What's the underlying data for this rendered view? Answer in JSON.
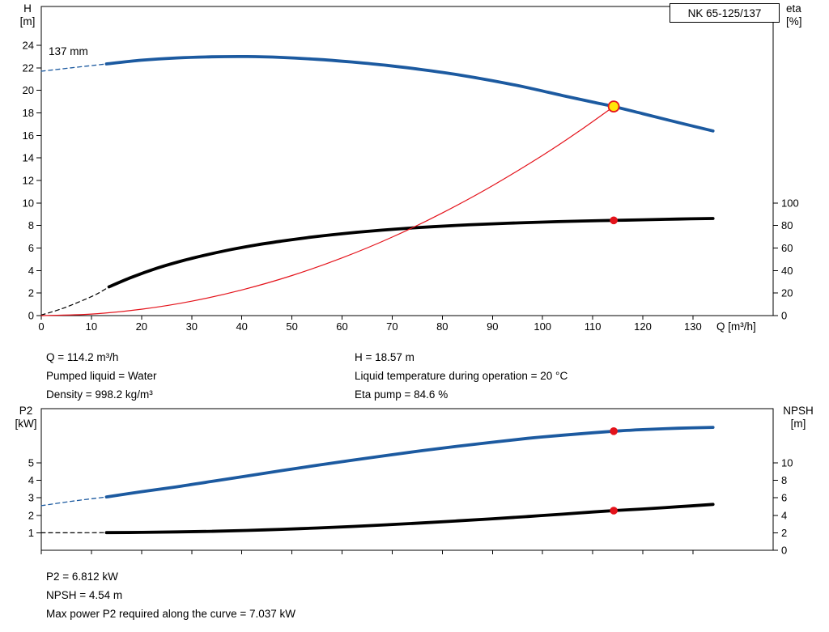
{
  "top_info": {
    "left": [
      "Q = 114.2 m³/h",
      "Pumped liquid = Water",
      "Density = 998.2 kg/m³"
    ],
    "right": [
      "H = 18.57 m",
      "Liquid temperature during operation = 20 °C",
      "Eta pump = 84.6 %"
    ]
  },
  "bottom_info": [
    "P2 = 6.812 kW",
    "NPSH = 4.54 m",
    "Max power P2 required along the curve = 7.037 kW"
  ],
  "colors": {
    "curve_blue": "#1c5aa0",
    "curve_black": "#000000",
    "curve_red": "#e4131b",
    "duty_yellow": "#ffe50a",
    "frame": "#000000"
  },
  "chart_data": [
    {
      "type": "line",
      "title": "NK 65-125/137",
      "annotation": {
        "text": "137 mm"
      },
      "duty_point": {
        "q": 114.2,
        "h": 18.57,
        "eta": 84.6
      },
      "axes": {
        "x": {
          "label": "Q [m³/h]",
          "min": 0,
          "max": 146,
          "ticks": [
            0,
            10,
            20,
            30,
            40,
            50,
            60,
            70,
            80,
            90,
            100,
            110,
            120,
            130
          ],
          "show_labels": true
        },
        "y_left": {
          "label_lines": [
            "H",
            "[m]"
          ],
          "min": 0,
          "max": 27.45,
          "ticks": [
            0,
            2,
            4,
            6,
            8,
            10,
            12,
            14,
            16,
            18,
            20,
            22,
            24
          ]
        },
        "y_right": {
          "label_lines": [
            "eta",
            "[%]"
          ],
          "min": 0,
          "max": 274.5,
          "ticks": [
            0,
            20,
            40,
            60,
            80,
            100
          ]
        }
      },
      "series": [
        {
          "name": "h-curve-dashed",
          "axis": "left",
          "color": "#1c5aa0",
          "width": 1.3,
          "dashed": true,
          "points": [
            [
              0,
              21.7
            ],
            [
              6,
              22.0
            ],
            [
              13,
              22.35
            ]
          ]
        },
        {
          "name": "h-curve",
          "axis": "left",
          "color": "#1c5aa0",
          "width": 3.8,
          "dashed": false,
          "points": [
            [
              13,
              22.35
            ],
            [
              20,
              22.68
            ],
            [
              27,
              22.88
            ],
            [
              34,
              22.98
            ],
            [
              41,
              23.0
            ],
            [
              48,
              22.92
            ],
            [
              55,
              22.76
            ],
            [
              62,
              22.52
            ],
            [
              69,
              22.22
            ],
            [
              76,
              21.84
            ],
            [
              83,
              21.4
            ],
            [
              90,
              20.86
            ],
            [
              97,
              20.24
            ],
            [
              104,
              19.54
            ],
            [
              110,
              18.96
            ],
            [
              114.2,
              18.57
            ],
            [
              120,
              17.93
            ],
            [
              127,
              17.15
            ],
            [
              134,
              16.4
            ]
          ]
        },
        {
          "name": "eta-curve-dashed",
          "axis": "right",
          "color": "#000000",
          "width": 1.2,
          "dashed": true,
          "points": [
            [
              0,
              0.5
            ],
            [
              4,
              6
            ],
            [
              8,
              13
            ],
            [
              11,
              19
            ],
            [
              13.5,
              25.5
            ]
          ]
        },
        {
          "name": "eta-curve",
          "axis": "right",
          "color": "#000000",
          "width": 3.8,
          "dashed": false,
          "points": [
            [
              13.5,
              25.5
            ],
            [
              18,
              34
            ],
            [
              23,
              42
            ],
            [
              28,
              48.5
            ],
            [
              33,
              54
            ],
            [
              38,
              58.8
            ],
            [
              43,
              62.8
            ],
            [
              48,
              66.2
            ],
            [
              53,
              69.2
            ],
            [
              58,
              71.8
            ],
            [
              63,
              74
            ],
            [
              68,
              75.9
            ],
            [
              73,
              77.5
            ],
            [
              78,
              78.9
            ],
            [
              83,
              80.1
            ],
            [
              88,
              81.1
            ],
            [
              93,
              82
            ],
            [
              98,
              82.7
            ],
            [
              103,
              83.4
            ],
            [
              108,
              84
            ],
            [
              114.2,
              84.6
            ],
            [
              120,
              85.1
            ],
            [
              127,
              85.7
            ],
            [
              134,
              86.2
            ]
          ]
        },
        {
          "name": "system-curve",
          "axis": "left",
          "color": "#e4131b",
          "width": 1.2,
          "dashed": false,
          "points": [
            [
              0,
              0
            ],
            [
              10,
              0.14
            ],
            [
              20,
              0.57
            ],
            [
              30,
              1.28
            ],
            [
              40,
              2.28
            ],
            [
              50,
              3.56
            ],
            [
              60,
              5.12
            ],
            [
              70,
              6.97
            ],
            [
              80,
              9.11
            ],
            [
              90,
              11.53
            ],
            [
              100,
              14.23
            ],
            [
              107,
              16.29
            ],
            [
              114.2,
              18.57
            ]
          ]
        }
      ],
      "markers": [
        {
          "name": "duty-point-marker",
          "axis": "left",
          "x": 114.2,
          "y": 18.57,
          "r": 6.5,
          "fill": "#ffe50a",
          "stroke": "#e4131b",
          "stroke_width": 1.8
        },
        {
          "name": "eta-duty-marker",
          "axis": "right",
          "x": 114.2,
          "y": 84.6,
          "r": 4.8,
          "fill": "#e4131b",
          "stroke": "none",
          "stroke_width": 0
        }
      ]
    },
    {
      "type": "line",
      "title": "",
      "duty_point": {
        "q": 114.2,
        "p2": 6.812,
        "npsh": 4.54
      },
      "axes": {
        "x": {
          "label": "",
          "min": 0,
          "max": 146,
          "ticks": [
            0,
            10,
            20,
            30,
            40,
            50,
            60,
            70,
            80,
            90,
            100,
            110,
            120,
            130
          ],
          "show_labels": false
        },
        "y_left": {
          "label_lines": [
            "P2",
            "[kW]"
          ],
          "min": 0,
          "max": 8.1,
          "ticks": [
            1,
            2,
            3,
            4,
            5
          ]
        },
        "y_right": {
          "label_lines": [
            "NPSH",
            "[m]"
          ],
          "min": 0,
          "max": 16.2,
          "ticks": [
            0,
            2,
            4,
            6,
            8,
            10
          ]
        }
      },
      "series": [
        {
          "name": "p2-curve-dashed",
          "axis": "left",
          "color": "#1c5aa0",
          "width": 1.3,
          "dashed": true,
          "points": [
            [
              0,
              2.55
            ],
            [
              6,
              2.8
            ],
            [
              13,
              3.05
            ]
          ]
        },
        {
          "name": "p2-curve",
          "axis": "left",
          "color": "#1c5aa0",
          "width": 3.8,
          "dashed": false,
          "points": [
            [
              13,
              3.05
            ],
            [
              20,
              3.35
            ],
            [
              27,
              3.63
            ],
            [
              34,
              3.94
            ],
            [
              41,
              4.25
            ],
            [
              48,
              4.56
            ],
            [
              55,
              4.86
            ],
            [
              62,
              5.15
            ],
            [
              69,
              5.43
            ],
            [
              76,
              5.7
            ],
            [
              83,
              5.95
            ],
            [
              90,
              6.18
            ],
            [
              97,
              6.4
            ],
            [
              104,
              6.58
            ],
            [
              110,
              6.72
            ],
            [
              114.2,
              6.81
            ],
            [
              120,
              6.9
            ],
            [
              127,
              6.98
            ],
            [
              134,
              7.03
            ]
          ]
        },
        {
          "name": "npsh-curve-dashed",
          "axis": "right",
          "color": "#000000",
          "width": 1.2,
          "dashed": true,
          "points": [
            [
              0,
              2.0
            ],
            [
              6,
              2.0
            ],
            [
              13,
              2.02
            ]
          ]
        },
        {
          "name": "npsh-curve",
          "axis": "right",
          "color": "#000000",
          "width": 3.8,
          "dashed": false,
          "points": [
            [
              13,
              2.02
            ],
            [
              20,
              2.05
            ],
            [
              27,
              2.1
            ],
            [
              34,
              2.17
            ],
            [
              41,
              2.27
            ],
            [
              48,
              2.4
            ],
            [
              55,
              2.55
            ],
            [
              62,
              2.72
            ],
            [
              69,
              2.92
            ],
            [
              76,
              3.13
            ],
            [
              83,
              3.36
            ],
            [
              90,
              3.6
            ],
            [
              97,
              3.86
            ],
            [
              104,
              4.13
            ],
            [
              110,
              4.38
            ],
            [
              114.2,
              4.54
            ],
            [
              120,
              4.72
            ],
            [
              127,
              4.98
            ],
            [
              134,
              5.25
            ]
          ]
        }
      ],
      "markers": [
        {
          "name": "p2-duty-marker",
          "axis": "left",
          "x": 114.2,
          "y": 6.812,
          "r": 4.8,
          "fill": "#e4131b",
          "stroke": "none",
          "stroke_width": 0
        },
        {
          "name": "npsh-duty-marker",
          "axis": "right",
          "x": 114.2,
          "y": 4.54,
          "r": 4.8,
          "fill": "#e4131b",
          "stroke": "none",
          "stroke_width": 0
        }
      ]
    }
  ]
}
